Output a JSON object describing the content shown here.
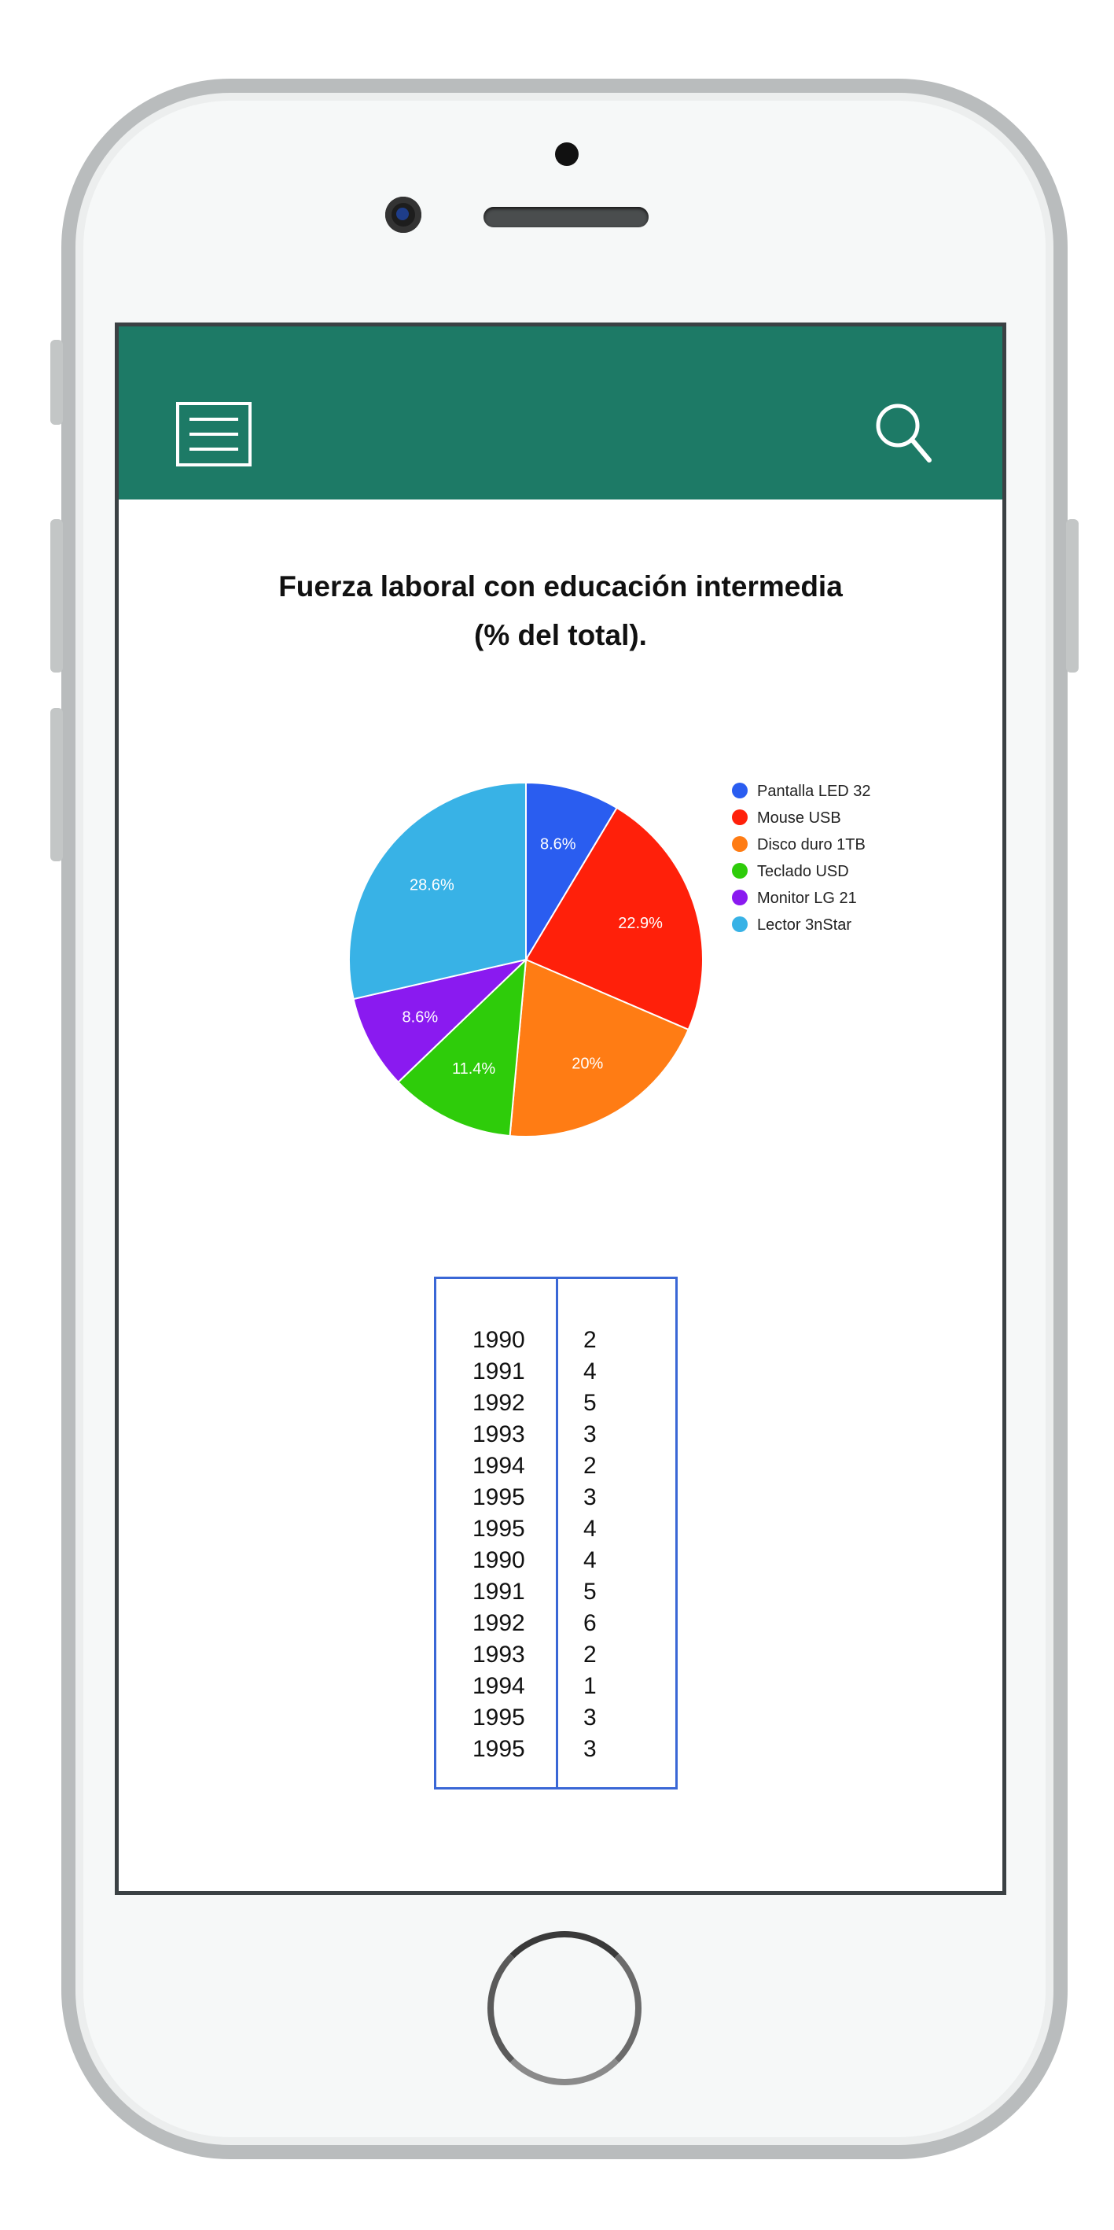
{
  "app": {
    "title_line1": "Fuerza laboral con educación intermedia",
    "title_line2": "(% del total).",
    "header_color": "#1d7a66",
    "icons": {
      "menu": "hamburger-menu-icon",
      "search": "search-icon"
    }
  },
  "chart_data": {
    "type": "pie",
    "title": "Fuerza laboral con educación intermedia (% del total).",
    "legend_position": "right",
    "labels": [
      "Pantalla LED 32",
      "Mouse USB",
      "Disco duro 1TB",
      "Teclado USD",
      "Monitor LG 21",
      "Lector 3nStar"
    ],
    "values": [
      8.6,
      22.9,
      20,
      11.4,
      8.6,
      28.6
    ],
    "value_labels": [
      "8.6%",
      "22.9%",
      "20%",
      "11.4%",
      "8.6%",
      "28.6%"
    ],
    "colors": [
      "#2a5df0",
      "#ff200a",
      "#ff7c14",
      "#2ecc0a",
      "#8a1af0",
      "#38b2e6"
    ]
  },
  "table": {
    "rows": [
      {
        "year": "1990",
        "value": "2"
      },
      {
        "year": "1991",
        "value": "4"
      },
      {
        "year": "1992",
        "value": "5"
      },
      {
        "year": "1993",
        "value": "3"
      },
      {
        "year": "1994",
        "value": "2"
      },
      {
        "year": "1995",
        "value": "3"
      },
      {
        "year": "1995",
        "value": "4"
      },
      {
        "year": "1990",
        "value": "4"
      },
      {
        "year": "1991",
        "value": "5"
      },
      {
        "year": "1992",
        "value": "6"
      },
      {
        "year": "1993",
        "value": "2"
      },
      {
        "year": "1994",
        "value": "1"
      },
      {
        "year": "1995",
        "value": "3"
      },
      {
        "year": "1995",
        "value": "3"
      }
    ]
  }
}
